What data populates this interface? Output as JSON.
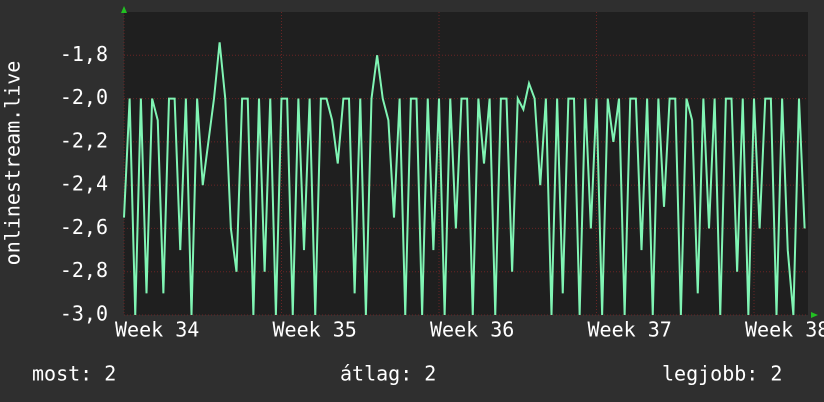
{
  "chart_data": {
    "type": "line",
    "y_label": "onlinestream.live",
    "x": [
      0,
      0.25,
      0.5,
      0.75,
      1,
      1.25,
      1.5,
      1.75,
      2,
      2.25,
      2.5,
      2.75,
      3,
      3.25,
      3.5,
      3.75,
      4,
      4.25,
      4.5,
      4.75,
      5,
      5.25,
      5.5,
      5.75,
      6,
      6.25,
      6.5,
      6.75,
      7,
      7.25,
      7.5,
      7.75,
      8,
      8.25,
      8.5,
      8.75,
      9,
      9.25,
      9.5,
      9.75,
      10,
      10.25,
      10.5,
      10.75,
      11,
      11.25,
      11.5,
      11.75,
      12,
      12.25,
      12.5,
      12.75,
      13,
      13.25,
      13.5,
      13.75,
      14,
      14.25,
      14.5,
      14.75,
      15,
      15.25,
      15.5,
      15.75,
      16,
      16.25,
      16.5,
      16.75,
      17,
      17.25,
      17.5,
      17.75,
      18,
      18.25,
      18.5,
      18.75,
      19,
      19.25,
      19.5,
      19.75,
      20,
      20.25,
      20.5,
      20.75,
      21,
      21.25,
      21.5,
      21.75,
      22,
      22.25,
      22.5,
      22.75,
      23,
      23.25,
      23.5,
      23.75,
      24,
      24.25,
      24.5,
      24.75,
      25,
      25.25,
      25.5,
      25.75,
      26,
      26.25,
      26.5,
      26.75,
      27,
      27.25,
      27.5,
      27.75,
      28,
      28.25,
      28.5,
      28.75,
      29,
      29.25,
      29.5,
      29.75,
      30,
      30.25
    ],
    "series": [
      {
        "color": "#80f5b4",
        "values": [
          -2.55,
          -2.0,
          -3.0,
          -2.0,
          -2.9,
          -2.0,
          -2.1,
          -2.9,
          -2.0,
          -2.0,
          -2.7,
          -2.0,
          -3.0,
          -2.0,
          -2.4,
          -2.2,
          -2.0,
          -1.74,
          -2.0,
          -2.6,
          -2.8,
          -2.0,
          -2.0,
          -3.0,
          -2.0,
          -2.8,
          -2.0,
          -3.0,
          -2.0,
          -2.0,
          -3.0,
          -2.0,
          -2.7,
          -2.0,
          -3.0,
          -2.0,
          -2.0,
          -2.1,
          -2.3,
          -2.0,
          -2.0,
          -2.9,
          -2.0,
          -3.0,
          -2.0,
          -1.8,
          -2.0,
          -2.1,
          -2.55,
          -2.0,
          -3.0,
          -2.0,
          -2.0,
          -3.0,
          -2.0,
          -2.7,
          -2.0,
          -3.0,
          -2.0,
          -2.6,
          -2.0,
          -2.0,
          -3.0,
          -2.0,
          -2.3,
          -2.0,
          -3.0,
          -2.0,
          -2.0,
          -2.8,
          -2.0,
          -2.05,
          -1.93,
          -2.0,
          -2.4,
          -2.0,
          -3.0,
          -2.0,
          -2.9,
          -2.0,
          -2.0,
          -3.0,
          -2.0,
          -2.6,
          -2.0,
          -3.0,
          -2.0,
          -2.2,
          -2.0,
          -3.0,
          -2.0,
          -2.0,
          -2.7,
          -2.0,
          -3.0,
          -2.0,
          -2.5,
          -2.0,
          -2.0,
          -3.0,
          -2.0,
          -2.1,
          -2.9,
          -2.0,
          -2.6,
          -2.0,
          -3.0,
          -2.0,
          -2.0,
          -2.8,
          -2.0,
          -3.0,
          -2.0,
          -2.6,
          -2.0,
          -2.0,
          -3.0,
          -2.0,
          -2.7,
          -3.0,
          -2.0,
          -2.6
        ]
      }
    ],
    "xlim": [
      0,
      30.4
    ],
    "xticks": [
      {
        "value": 0,
        "label": "Week 34"
      },
      {
        "value": 7,
        "label": "Week 35"
      },
      {
        "value": 14,
        "label": "Week 36"
      },
      {
        "value": 21,
        "label": "Week 37"
      },
      {
        "value": 28,
        "label": "Week 38"
      }
    ],
    "ylim": [
      -3.0,
      -1.6
    ],
    "yticks": [
      {
        "value": -3.0,
        "label": "-3,0"
      },
      {
        "value": -2.8,
        "label": "-2,8"
      },
      {
        "value": -2.6,
        "label": "-2,6"
      },
      {
        "value": -2.4,
        "label": "-2,4"
      },
      {
        "value": -2.2,
        "label": "-2,2"
      },
      {
        "value": -2.0,
        "label": "-2,0"
      },
      {
        "value": -1.8,
        "label": "-1,8"
      }
    ],
    "grid": true,
    "stats": [
      "most: 2",
      "átlag: 2",
      "legjobb: 2"
    ]
  }
}
